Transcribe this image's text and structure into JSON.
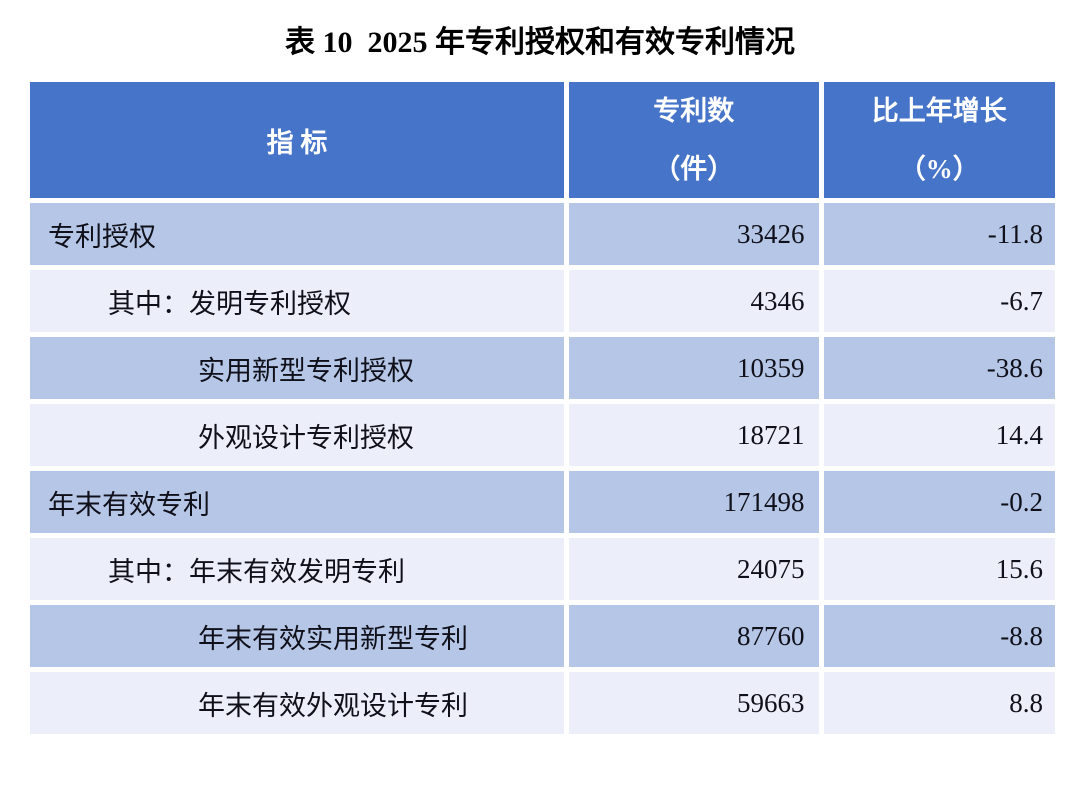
{
  "title": "表 10  2025 年专利授权和有效专利情况",
  "table": {
    "header": {
      "indicator": "指  标",
      "patents_line1": "专利数",
      "patents_line2": "（件）",
      "growth_line1": "比上年增长",
      "growth_line2": "（%）"
    },
    "rows": [
      {
        "label": "专利授权",
        "patents": "33426",
        "growth": "-11.8",
        "indent": 0
      },
      {
        "label": "其中：发明专利授权",
        "patents": "4346",
        "growth": "-6.7",
        "indent": 1
      },
      {
        "label": "实用新型专利授权",
        "patents": "10359",
        "growth": "-38.6",
        "indent": 2
      },
      {
        "label": "外观设计专利授权",
        "patents": "18721",
        "growth": "14.4",
        "indent": 2
      },
      {
        "label": "年末有效专利",
        "patents": "171498",
        "growth": "-0.2",
        "indent": 0
      },
      {
        "label": "其中：年末有效发明专利",
        "patents": "24075",
        "growth": "15.6",
        "indent": 1
      },
      {
        "label": "年末有效实用新型专利",
        "patents": "87760",
        "growth": "-8.8",
        "indent": 2
      },
      {
        "label": "年末有效外观设计专利",
        "patents": "59663",
        "growth": "8.8",
        "indent": 2
      }
    ]
  },
  "colors": {
    "header_bg": "#4674C8",
    "row_alt_bg": "#B5C6E6",
    "row_light_bg": "#ECEFF9",
    "header_text": "#FFFFFF",
    "body_text": "#10101A",
    "title_text": "#000000"
  }
}
